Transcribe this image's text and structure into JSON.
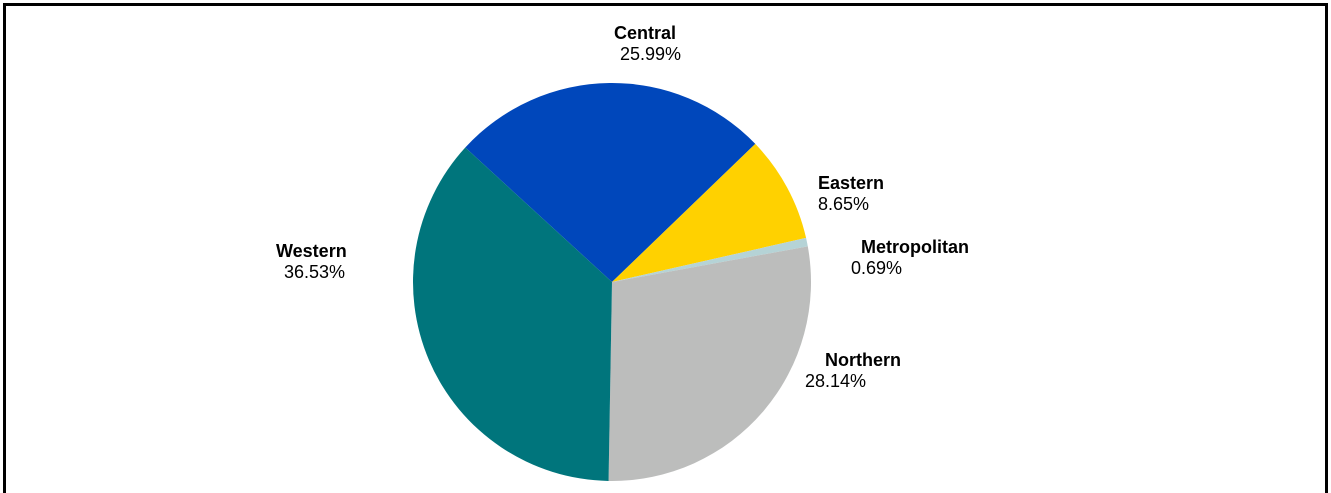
{
  "chart_data": {
    "type": "pie",
    "title": "",
    "slices": [
      {
        "name": "Central",
        "percent_label": "25.99%",
        "value": 25.99,
        "color": "#0047bb"
      },
      {
        "name": "Eastern",
        "percent_label": "8.65%",
        "value": 8.65,
        "color": "#ffd100"
      },
      {
        "name": "Metropolitan",
        "percent_label": "0.69%",
        "value": 0.69,
        "color": "#b5d3d6"
      },
      {
        "name": "Northern",
        "percent_label": "28.14%",
        "value": 28.14,
        "color": "#bcbdbc"
      },
      {
        "name": "Western",
        "percent_label": "36.53%",
        "value": 36.53,
        "color": "#00757c"
      }
    ]
  }
}
